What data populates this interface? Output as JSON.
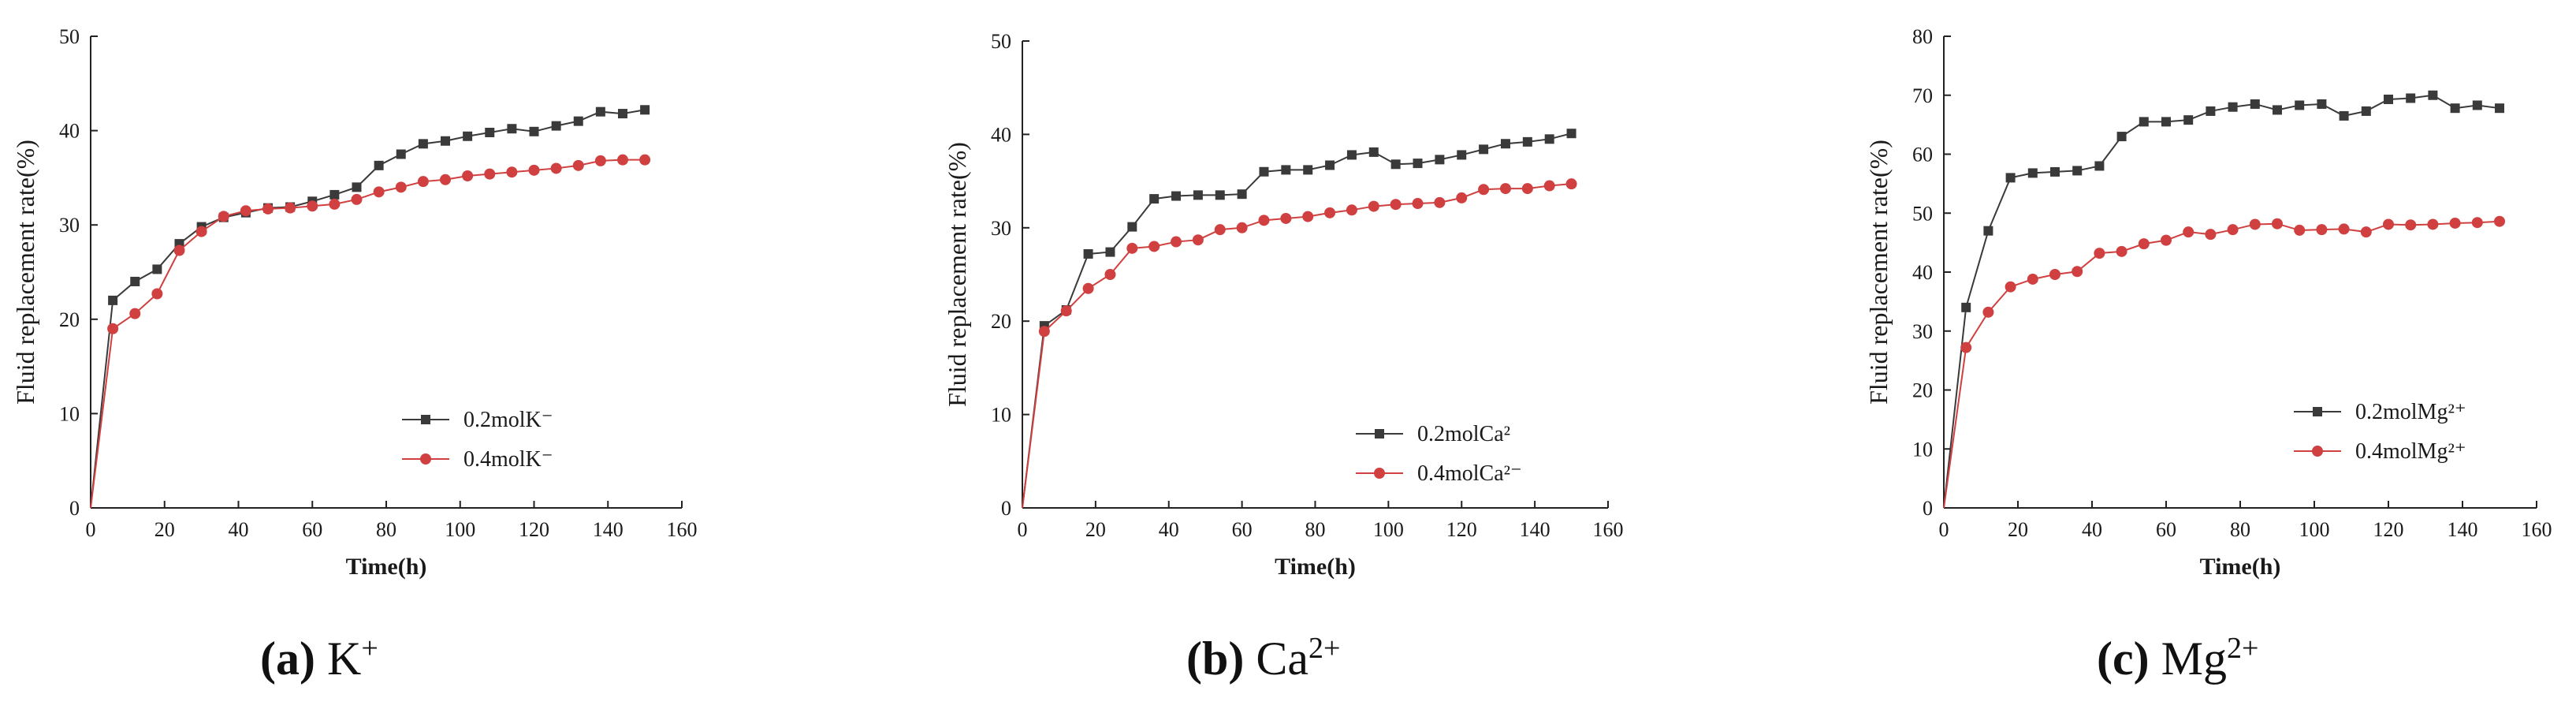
{
  "chart_data": [
    {
      "type": "line",
      "panel": "a",
      "xlabel": "Time(h)",
      "ylabel": "Fluid replacement rate(%)",
      "xlim": [
        0,
        160
      ],
      "ylim": [
        0,
        50
      ],
      "xticks": [
        0,
        20,
        40,
        60,
        80,
        100,
        120,
        140,
        160
      ],
      "yticks": [
        0,
        10,
        20,
        30,
        40,
        50
      ],
      "legend_position": "bottom-right",
      "caption": {
        "letter": "(a)",
        "ion": "K",
        "charge": "+"
      },
      "series": [
        {
          "name": "0.2molK⁻",
          "color": "#3a3a3a",
          "marker": "square",
          "x": [
            0,
            6,
            12,
            18,
            24,
            30,
            36,
            42,
            48,
            54,
            60,
            66,
            72,
            78,
            84,
            90,
            96,
            102,
            108,
            114,
            120,
            126,
            132,
            138,
            144,
            150
          ],
          "y": [
            0,
            22,
            24,
            25.3,
            28,
            29.8,
            30.8,
            31.3,
            31.8,
            31.9,
            32.5,
            33.2,
            34,
            36.3,
            37.5,
            38.6,
            38.9,
            39.4,
            39.8,
            40.2,
            39.9,
            40.5,
            41,
            42,
            41.8,
            42.2
          ]
        },
        {
          "name": "0.4molK⁻",
          "color": "#d04040",
          "marker": "circle",
          "x": [
            0,
            6,
            12,
            18,
            24,
            30,
            36,
            42,
            48,
            54,
            60,
            66,
            72,
            78,
            84,
            90,
            96,
            102,
            108,
            114,
            120,
            126,
            132,
            138,
            144,
            150
          ],
          "y": [
            0,
            19,
            20.6,
            22.7,
            27.3,
            29.3,
            30.9,
            31.5,
            31.7,
            31.8,
            32,
            32.2,
            32.7,
            33.5,
            34,
            34.6,
            34.8,
            35.2,
            35.4,
            35.6,
            35.8,
            36,
            36.3,
            36.8,
            36.9,
            36.9
          ]
        }
      ]
    },
    {
      "type": "line",
      "panel": "b",
      "xlabel": "Time(h)",
      "ylabel": "Fluid replacement rate(%)",
      "xlim": [
        0,
        160
      ],
      "ylim": [
        0,
        50
      ],
      "xticks": [
        0,
        20,
        40,
        60,
        80,
        100,
        120,
        140,
        160
      ],
      "yticks": [
        0,
        10,
        20,
        30,
        40,
        50
      ],
      "legend_position": "right-middle",
      "caption": {
        "letter": "(b)",
        "ion": "Ca",
        "charge": "2+"
      },
      "series": [
        {
          "name": "0.2molCa²",
          "color": "#3a3a3a",
          "marker": "square",
          "x": [
            0,
            6,
            12,
            18,
            24,
            30,
            36,
            42,
            48,
            54,
            60,
            66,
            72,
            78,
            84,
            90,
            96,
            102,
            108,
            114,
            120,
            126,
            132,
            138,
            144,
            150
          ],
          "y": [
            0,
            19.5,
            21.2,
            27.2,
            27.4,
            30.1,
            33.1,
            33.4,
            33.5,
            33.5,
            33.6,
            36,
            36.2,
            36.2,
            36.7,
            37.8,
            38.1,
            36.8,
            36.9,
            37.3,
            37.8,
            38.4,
            39,
            39.2,
            39.5,
            40.1
          ]
        },
        {
          "name": "0.4molCa²⁻",
          "color": "#d04040",
          "marker": "circle",
          "x": [
            0,
            6,
            12,
            18,
            24,
            30,
            36,
            42,
            48,
            54,
            60,
            66,
            72,
            78,
            84,
            90,
            96,
            102,
            108,
            114,
            120,
            126,
            132,
            138,
            144,
            150
          ],
          "y": [
            0,
            18.9,
            21.1,
            23.5,
            25,
            27.8,
            28,
            28.5,
            28.7,
            29.8,
            30,
            30.8,
            31,
            31.2,
            31.6,
            31.9,
            32.3,
            32.5,
            32.6,
            32.7,
            33.2,
            34.1,
            34.2,
            34.2,
            34.5,
            34.7
          ]
        }
      ]
    },
    {
      "type": "line",
      "panel": "c",
      "xlabel": "Time(h)",
      "ylabel": "Fluid replacement rate(%)",
      "xlim": [
        0,
        160
      ],
      "ylim": [
        0,
        80
      ],
      "xticks": [
        0,
        20,
        40,
        60,
        80,
        100,
        120,
        140,
        160
      ],
      "yticks": [
        0,
        10,
        20,
        30,
        40,
        50,
        60,
        70,
        80
      ],
      "legend_position": "bottom-right",
      "caption": {
        "letter": "(c)",
        "ion": "Mg",
        "charge": "2+"
      },
      "series": [
        {
          "name": "0.2molMg²⁺",
          "color": "#3a3a3a",
          "marker": "square",
          "x": [
            0,
            6,
            12,
            18,
            24,
            30,
            36,
            42,
            48,
            54,
            60,
            66,
            72,
            78,
            84,
            90,
            96,
            102,
            108,
            114,
            120,
            126,
            132,
            138,
            144,
            150
          ],
          "y": [
            0,
            34,
            47,
            56,
            56.8,
            57,
            57.2,
            58,
            63,
            65.5,
            65.5,
            65.8,
            67.3,
            68,
            68.5,
            67.5,
            68.3,
            68.5,
            66.5,
            67.3,
            69.3,
            69.5,
            70,
            67.8,
            68.3,
            67.8
          ]
        },
        {
          "name": "0.4molMg²⁺",
          "color": "#d04040",
          "marker": "circle",
          "x": [
            0,
            6,
            12,
            18,
            24,
            30,
            36,
            42,
            48,
            54,
            60,
            66,
            72,
            78,
            84,
            90,
            96,
            102,
            108,
            114,
            120,
            126,
            132,
            138,
            144,
            150
          ],
          "y": [
            0,
            27.2,
            33.2,
            37.5,
            38.8,
            39.6,
            40.1,
            43.2,
            43.5,
            44.8,
            45.4,
            46.8,
            46.4,
            47.2,
            48.1,
            48.2,
            47.1,
            47.2,
            47.3,
            46.8,
            48.1,
            48,
            48.1,
            48.3,
            48.4,
            48.6
          ]
        }
      ]
    }
  ]
}
